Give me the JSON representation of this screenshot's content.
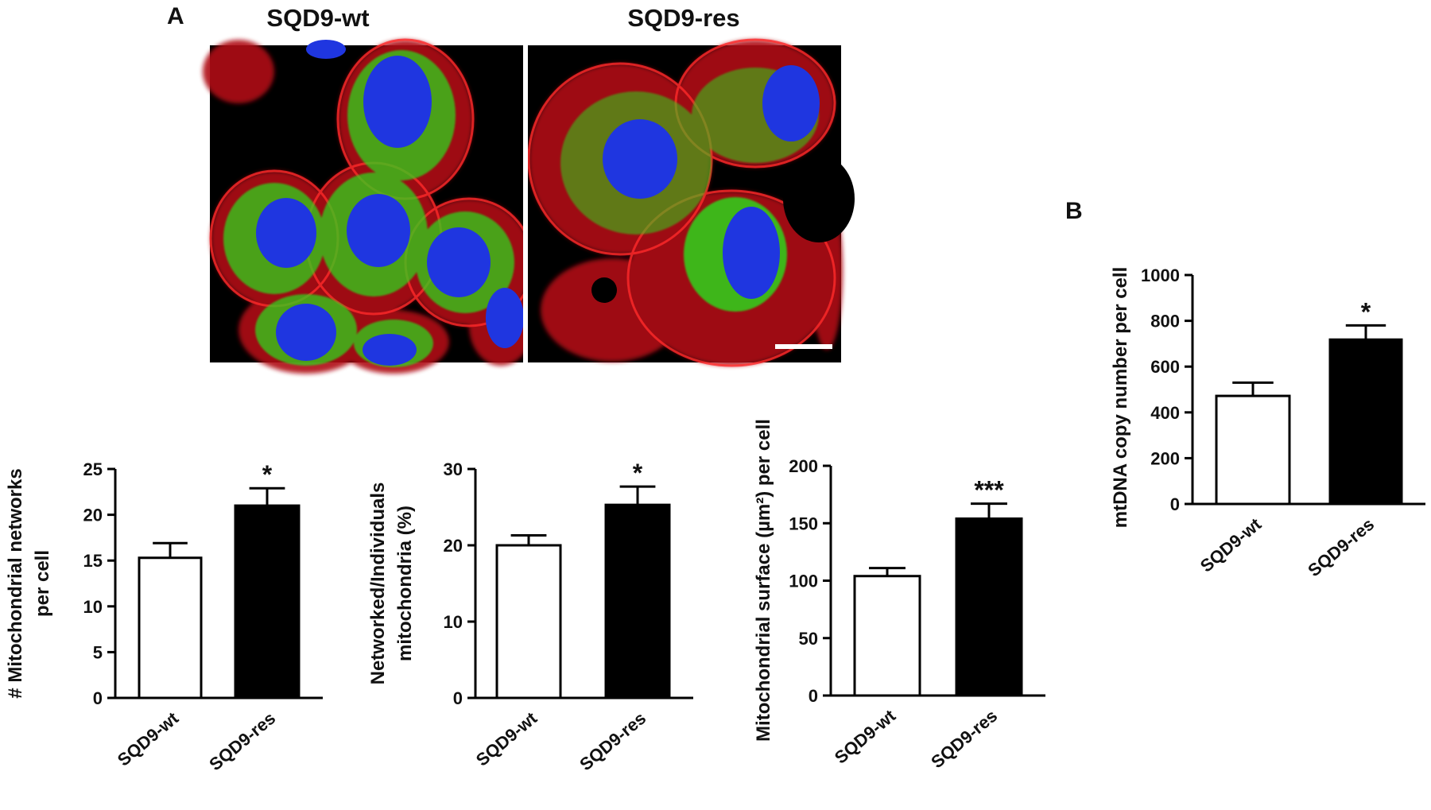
{
  "figure": {
    "panel_a_label": "A",
    "panel_b_label": "B",
    "micrograph_titles": [
      "SQD9-wt",
      "SQD9-res"
    ]
  },
  "colors": {
    "wt_bar_fill": "#ffffff",
    "res_bar_fill": "#000000",
    "axis": "#000000",
    "actin_stain": "#d8141c",
    "mitochondria_stain": "#22c41a",
    "nucleus_stain": "#1a2fd6"
  },
  "chart_data": [
    {
      "type": "bar",
      "panel": "A",
      "categories": [
        "SQD9-wt",
        "SQD9-res"
      ],
      "values": [
        15.3,
        21.0
      ],
      "errors": [
        1.6,
        1.9
      ],
      "significance": [
        "",
        "*"
      ],
      "ylabel_lines": [
        "# Mitochondrial networks",
        "per cell"
      ],
      "ylim": [
        0,
        25
      ],
      "yticks": [
        0,
        5,
        10,
        15,
        20,
        25
      ]
    },
    {
      "type": "bar",
      "panel": "A",
      "categories": [
        "SQD9-wt",
        "SQD9-res"
      ],
      "values": [
        20.0,
        25.3
      ],
      "errors": [
        1.3,
        2.4
      ],
      "significance": [
        "",
        "*"
      ],
      "ylabel_lines": [
        "Networked/Individuals",
        "mitochondria (%)"
      ],
      "ylim": [
        0,
        30
      ],
      "yticks": [
        0,
        10,
        20,
        30
      ]
    },
    {
      "type": "bar",
      "panel": "A",
      "categories": [
        "SQD9-wt",
        "SQD9-res"
      ],
      "values": [
        104,
        154
      ],
      "errors": [
        7,
        13
      ],
      "significance": [
        "",
        "***"
      ],
      "ylabel_lines": [
        "Mitochondrial surface (µm²) per cell"
      ],
      "ylim": [
        0,
        200
      ],
      "yticks": [
        0,
        50,
        100,
        150,
        200
      ]
    },
    {
      "type": "bar",
      "panel": "B",
      "categories": [
        "SQD9-wt",
        "SQD9-res"
      ],
      "values": [
        472,
        718
      ],
      "errors": [
        58,
        62
      ],
      "significance": [
        "",
        "*"
      ],
      "ylabel_lines": [
        "mtDNA copy number per cell"
      ],
      "ylim": [
        0,
        1000
      ],
      "yticks": [
        0,
        200,
        400,
        600,
        800,
        1000
      ]
    }
  ]
}
